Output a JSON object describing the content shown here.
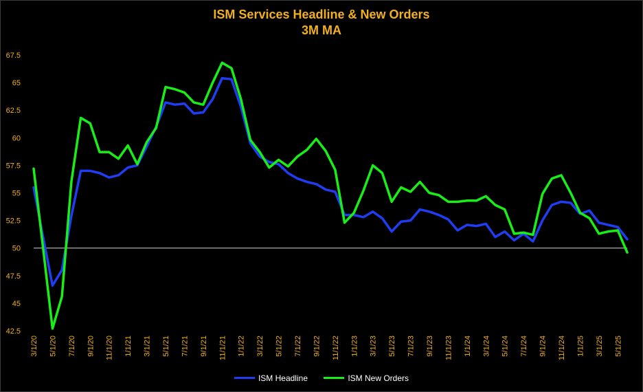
{
  "colors": {
    "background": "#000000",
    "text": "#f2b01e",
    "headline": "#1f3df2",
    "new_orders": "#19ee19",
    "reference_line": "#d9d9d9"
  },
  "chart_data": {
    "type": "line",
    "title": "ISM Services Headline & New Orders",
    "subtitle": "3M MA",
    "xlabel": "",
    "ylabel": "",
    "ylim": [
      42.5,
      67.5
    ],
    "yticks": [
      "42.5",
      "45",
      "47.5",
      "50",
      "52.5",
      "55",
      "57.5",
      "60",
      "62.5",
      "65",
      "67.5"
    ],
    "xtick_labels": [
      "3/1/20",
      "5/1/20",
      "7/1/20",
      "9/1/20",
      "11/1/20",
      "1/1/21",
      "3/1/21",
      "5/1/21",
      "7/1/21",
      "9/1/21",
      "11/1/21",
      "1/1/22",
      "3/1/22",
      "5/1/22",
      "7/1/22",
      "9/1/22",
      "11/1/22",
      "1/1/23",
      "3/1/23",
      "5/1/23",
      "7/1/23",
      "9/1/23",
      "11/1/23",
      "1/1/24",
      "3/1/24",
      "5/1/24",
      "7/1/24",
      "9/1/24",
      "11/1/24",
      "1/1/25",
      "3/1/25",
      "5/1/25"
    ],
    "x": [
      "3/1/20",
      "4/1/20",
      "5/1/20",
      "6/1/20",
      "7/1/20",
      "8/1/20",
      "9/1/20",
      "10/1/20",
      "11/1/20",
      "12/1/20",
      "1/1/21",
      "2/1/21",
      "3/1/21",
      "4/1/21",
      "5/1/21",
      "6/1/21",
      "7/1/21",
      "8/1/21",
      "9/1/21",
      "10/1/21",
      "11/1/21",
      "12/1/21",
      "1/1/22",
      "2/1/22",
      "3/1/22",
      "4/1/22",
      "5/1/22",
      "6/1/22",
      "7/1/22",
      "8/1/22",
      "9/1/22",
      "10/1/22",
      "11/1/22",
      "12/1/22",
      "1/1/23",
      "2/1/23",
      "3/1/23",
      "4/1/23",
      "5/1/23",
      "6/1/23",
      "7/1/23",
      "8/1/23",
      "9/1/23",
      "10/1/23",
      "11/1/23",
      "12/1/23",
      "1/1/24",
      "2/1/24",
      "3/1/24",
      "4/1/24",
      "5/1/24",
      "6/1/24",
      "7/1/24",
      "8/1/24",
      "9/1/24",
      "10/1/24",
      "11/1/24",
      "12/1/24",
      "1/1/25",
      "2/1/25",
      "3/1/25",
      "4/1/25",
      "5/1/25",
      "6/1/25"
    ],
    "reference_line": 50,
    "series": [
      {
        "name": "ISM Headline",
        "color": "#1f3df2",
        "values": [
          55.5,
          51.0,
          46.6,
          48.0,
          52.9,
          57.0,
          57.0,
          56.8,
          56.4,
          56.6,
          57.3,
          57.5,
          59.2,
          61.0,
          63.2,
          63.0,
          63.1,
          62.2,
          62.3,
          63.5,
          65.4,
          65.3,
          62.8,
          59.5,
          58.3,
          57.8,
          57.6,
          56.8,
          56.3,
          56.0,
          55.8,
          55.3,
          55.1,
          53.0,
          53.0,
          52.8,
          53.3,
          52.7,
          51.5,
          52.4,
          52.5,
          53.5,
          53.3,
          53.0,
          52.6,
          51.6,
          52.1,
          52.0,
          52.2,
          51.0,
          51.5,
          50.7,
          51.3,
          50.6,
          52.5,
          53.9,
          54.2,
          54.1,
          53.1,
          53.4,
          52.3,
          52.1,
          51.9,
          50.8
        ]
      },
      {
        "name": "ISM New Orders",
        "color": "#19ee19",
        "values": [
          57.2,
          50.0,
          42.7,
          45.6,
          56.0,
          61.8,
          61.3,
          58.7,
          58.7,
          58.1,
          59.3,
          57.6,
          59.6,
          60.9,
          64.6,
          64.4,
          64.1,
          63.2,
          63.0,
          65.0,
          66.8,
          66.3,
          63.5,
          59.8,
          58.7,
          57.3,
          58.0,
          57.4,
          58.3,
          58.9,
          59.9,
          58.8,
          57.1,
          52.3,
          53.2,
          55.2,
          57.5,
          56.8,
          54.2,
          55.5,
          55.1,
          56.0,
          55.0,
          54.8,
          54.2,
          54.2,
          54.3,
          54.3,
          54.7,
          53.9,
          53.5,
          51.3,
          51.4,
          51.2,
          54.9,
          56.3,
          56.6,
          55.0,
          53.2,
          52.7,
          51.3,
          51.5,
          51.6,
          49.6
        ]
      }
    ],
    "legend": {
      "placement": "bottom-center",
      "entries": [
        "ISM Headline",
        "ISM New Orders"
      ]
    },
    "grid": false
  }
}
